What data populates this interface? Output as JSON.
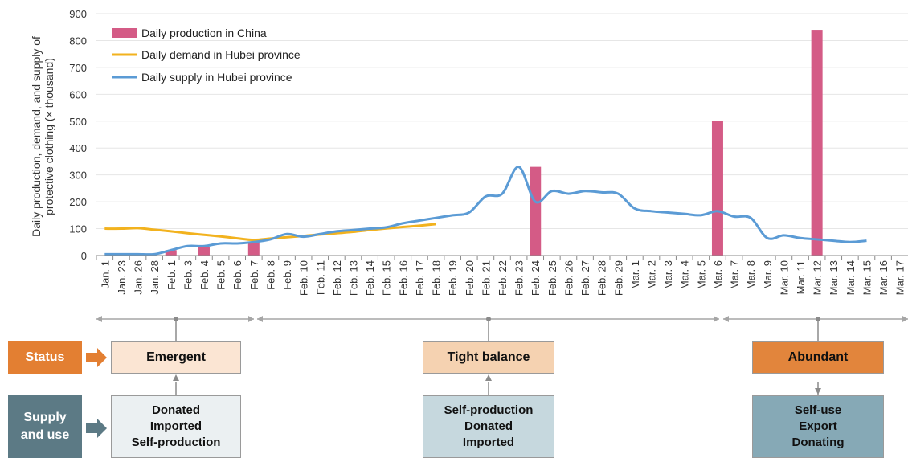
{
  "chart_data": {
    "type": "bar+line",
    "ylabel": "Daily production, demand, and supply of protective clothing (× thousand)",
    "ylim": [
      0,
      900
    ],
    "yticks": [
      0,
      100,
      200,
      300,
      400,
      500,
      600,
      700,
      800,
      900
    ],
    "grid": "horizontal",
    "legend_position": "top-left",
    "categories": [
      "Jan. 1",
      "Jan. 23",
      "Jan. 26",
      "Jan. 28",
      "Feb. 1",
      "Feb. 3",
      "Feb. 4",
      "Feb. 5",
      "Feb. 6",
      "Feb. 7",
      "Feb. 8",
      "Feb. 9",
      "Feb. 10",
      "Feb. 11",
      "Feb. 12",
      "Feb. 13",
      "Feb. 14",
      "Feb. 15",
      "Feb. 16",
      "Feb. 17",
      "Feb. 18",
      "Feb. 19",
      "Feb. 20",
      "Feb. 21",
      "Feb. 22",
      "Feb. 23",
      "Feb. 24",
      "Feb. 25",
      "Feb. 26",
      "Feb. 27",
      "Feb. 28",
      "Feb. 29",
      "Mar. 1",
      "Mar. 2",
      "Mar. 3",
      "Mar. 4",
      "Mar. 5",
      "Mar. 6",
      "Mar. 7",
      "Mar. 8",
      "Mar. 9",
      "Mar. 10",
      "Mar. 11",
      "Mar. 12",
      "Mar. 13",
      "Mar. 14",
      "Mar. 15",
      "Mar. 16",
      "Mar. 17"
    ],
    "series": [
      {
        "name": "Daily production in China",
        "kind": "bar",
        "color": "#d45b86",
        "values": [
          null,
          null,
          null,
          null,
          20,
          null,
          30,
          null,
          null,
          50,
          null,
          null,
          null,
          null,
          null,
          null,
          null,
          null,
          null,
          null,
          null,
          null,
          null,
          null,
          null,
          null,
          330,
          null,
          null,
          null,
          null,
          null,
          null,
          null,
          null,
          null,
          null,
          500,
          null,
          null,
          null,
          null,
          null,
          840,
          null,
          null,
          null,
          null,
          null
        ]
      },
      {
        "name": "Daily demand in Hubei province",
        "kind": "line",
        "color": "#f2b21e",
        "values": [
          100,
          100,
          102,
          96,
          90,
          83,
          77,
          71,
          64,
          58,
          63,
          68,
          73,
          78,
          83,
          88,
          95,
          101,
          106,
          111,
          117,
          null,
          null,
          null,
          null,
          null,
          null,
          null,
          null,
          null,
          null,
          null,
          null,
          null,
          null,
          null,
          null,
          null,
          null,
          null,
          null,
          null,
          null,
          null,
          null,
          null,
          null,
          null,
          null
        ]
      },
      {
        "name": "Daily supply in Hubei province",
        "kind": "line",
        "color": "#5b9bd5",
        "values": [
          5,
          5,
          5,
          5,
          20,
          35,
          35,
          45,
          45,
          50,
          60,
          80,
          70,
          80,
          90,
          95,
          100,
          105,
          120,
          130,
          140,
          150,
          160,
          220,
          230,
          330,
          200,
          240,
          230,
          240,
          235,
          230,
          175,
          165,
          160,
          155,
          150,
          165,
          145,
          140,
          65,
          75,
          65,
          60,
          55,
          50,
          55,
          null,
          null
        ]
      }
    ]
  },
  "status_row": {
    "label": "Status",
    "boxes": [
      "Emergent",
      "Tight balance",
      "Abundant"
    ]
  },
  "supply_row": {
    "label_line1": "Supply",
    "label_line2": "and use",
    "boxes": [
      {
        "line1": "Donated",
        "line2": "Imported",
        "line3": "Self-production"
      },
      {
        "line1": "Self-production",
        "line2": "Donated",
        "line3": "Imported"
      },
      {
        "line1": "Self-use",
        "line2": "Export",
        "line3": "Donating"
      }
    ]
  },
  "colors": {
    "status_label_bg": "#e37f32",
    "supply_label_bg": "#5c7a85",
    "emergent_box": "#fbe5d3",
    "tight_box": "#f5d2b1",
    "abundant_box": "#e2853c",
    "supply_box_1": "#ebf0f2",
    "supply_box_2": "#c6d8de",
    "supply_box_3": "#86a9b6"
  }
}
